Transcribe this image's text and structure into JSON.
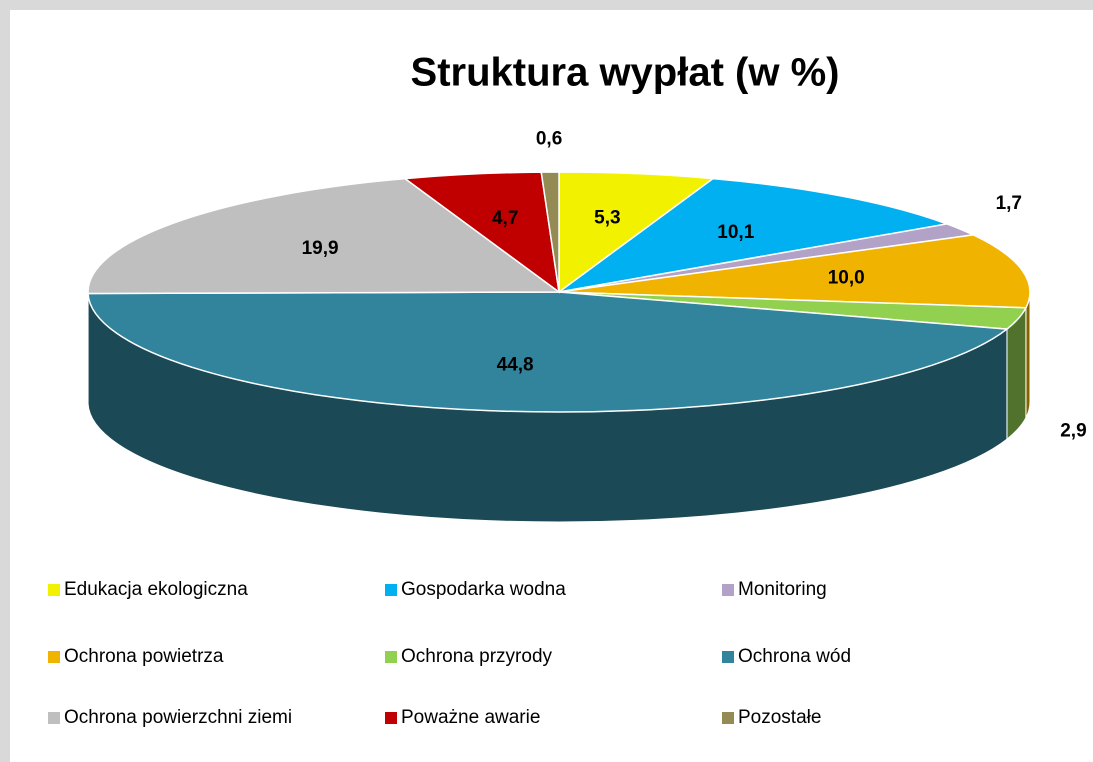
{
  "chart_data": {
    "type": "pie",
    "title": "Struktura wypłat (w %)",
    "categories": [
      "Edukacja ekologiczna",
      "Gospodarka wodna",
      "Monitoring",
      "Ochrona powietrza",
      "Ochrona przyrody",
      "Ochrona wód",
      "Ochrona powierzchni ziemi",
      "Poważne awarie",
      "Pozostałe"
    ],
    "values": [
      5.3,
      10.1,
      1.7,
      10.0,
      2.9,
      44.8,
      19.9,
      4.7,
      0.6
    ],
    "value_labels": [
      "5,3",
      "10,1",
      "1,7",
      "10,0",
      "2,9",
      "44,8",
      "19,9",
      "4,7",
      "0,6"
    ],
    "colors": [
      "#f2f200",
      "#00b0f0",
      "#b3a2c7",
      "#f0b400",
      "#92d050",
      "#31849b",
      "#bfbfbf",
      "#c00000",
      "#948a54"
    ]
  }
}
